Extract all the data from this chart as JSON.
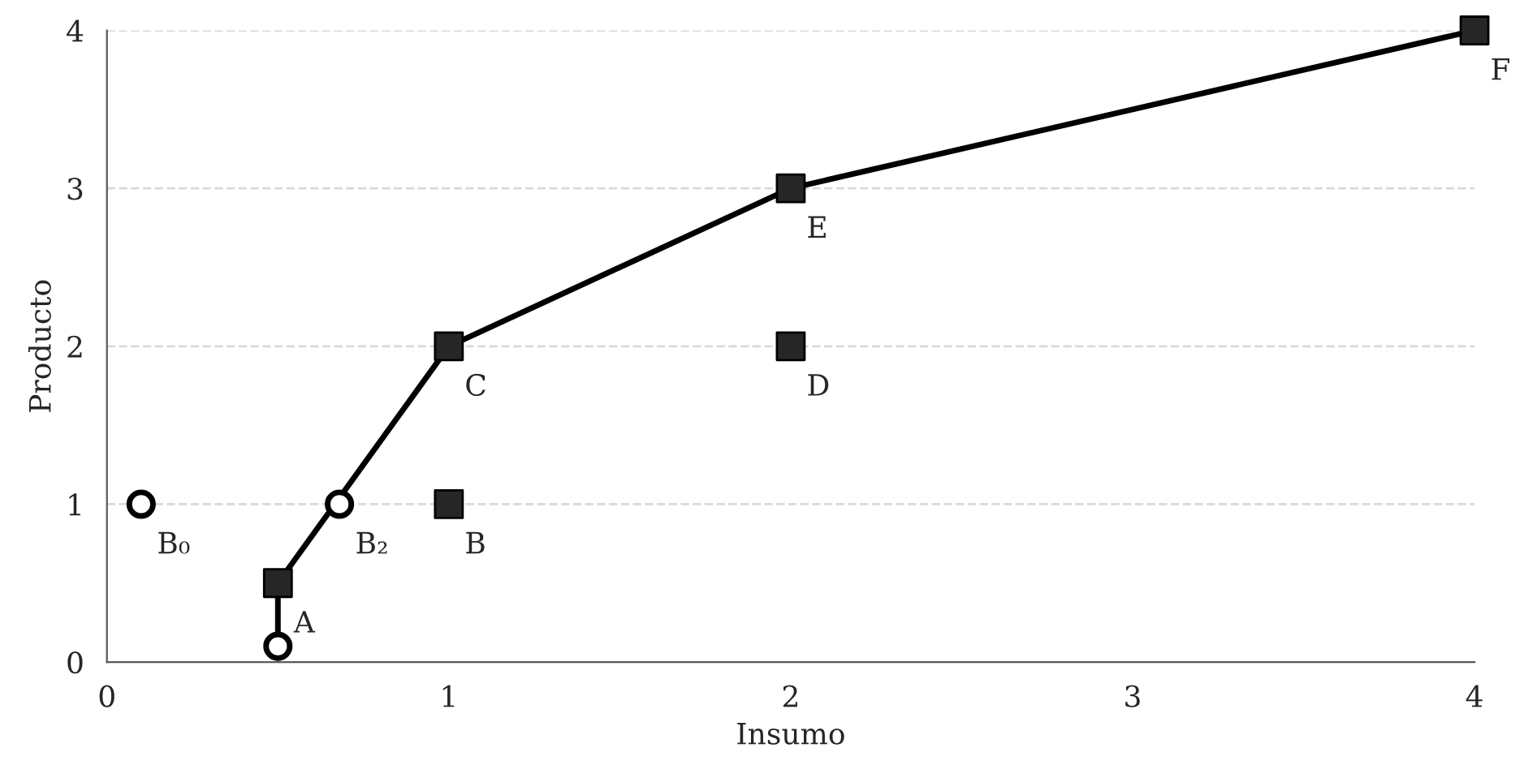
{
  "chart_data": {
    "type": "line",
    "xlabel": "Insumo",
    "ylabel": "Producto",
    "xlim": [
      0,
      4
    ],
    "ylim": [
      0,
      4
    ],
    "xticks": [
      0,
      1,
      2,
      3,
      4
    ],
    "yticks": [
      0,
      1,
      2,
      3,
      4
    ],
    "grid": "y",
    "legend": false,
    "series": [
      {
        "color": "#000000",
        "marker": "none",
        "line_style": "solid",
        "x": [
          0.5,
          0.5,
          1,
          2,
          4
        ],
        "values": [
          0.1,
          0.5,
          2,
          3,
          4
        ]
      },
      {
        "type": "scatter",
        "color": "#262626",
        "marker": "square",
        "x": [
          0.5,
          1,
          1,
          2,
          2,
          4
        ],
        "values": [
          0.5,
          1,
          2,
          2,
          3,
          4
        ]
      },
      {
        "type": "scatter",
        "color": "#000000",
        "marker": "open_circle",
        "x": [
          0.1,
          0.68,
          0.5
        ],
        "values": [
          1,
          1,
          0.1
        ]
      }
    ],
    "annotations": [
      {
        "text": "A",
        "x": 0.5,
        "y": 0.5
      },
      {
        "text": "B",
        "x": 1,
        "y": 1
      },
      {
        "text": "C",
        "x": 1,
        "y": 2
      },
      {
        "text": "D",
        "x": 2,
        "y": 2
      },
      {
        "text": "E",
        "x": 2,
        "y": 3
      },
      {
        "text": "F",
        "x": 4,
        "y": 4
      },
      {
        "text": "B₀",
        "x": 0.1,
        "y": 1
      },
      {
        "text": "B₂",
        "x": 0.68,
        "y": 1
      }
    ]
  }
}
